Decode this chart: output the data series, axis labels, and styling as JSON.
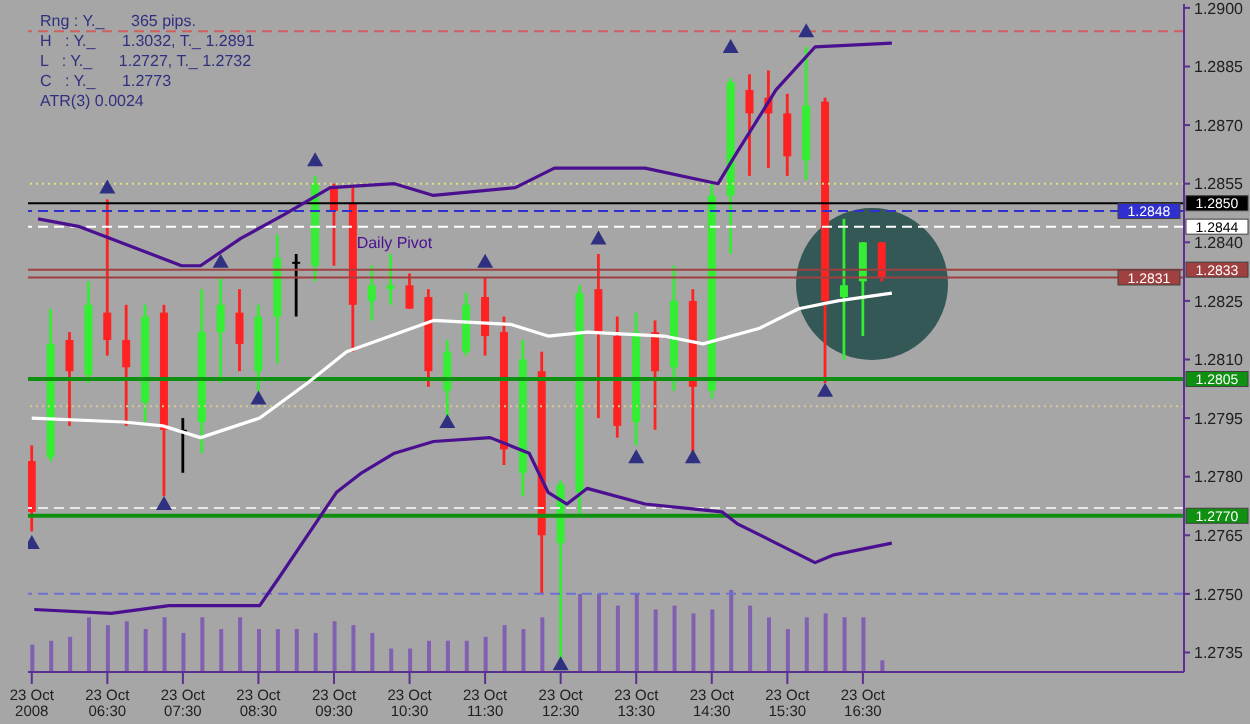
{
  "chart_data": {
    "type": "candlestick",
    "x": [
      "2008-10-23T05:30",
      "2008-10-23T05:45",
      "2008-10-23T06:00",
      "2008-10-23T06:15",
      "2008-10-23T06:30",
      "2008-10-23T06:45",
      "2008-10-23T07:00",
      "2008-10-23T07:15",
      "2008-10-23T07:30",
      "2008-10-23T07:45",
      "2008-10-23T08:00",
      "2008-10-23T08:15",
      "2008-10-23T08:30",
      "2008-10-23T08:45",
      "2008-10-23T09:00",
      "2008-10-23T09:15",
      "2008-10-23T09:30",
      "2008-10-23T09:45",
      "2008-10-23T10:00",
      "2008-10-23T10:15",
      "2008-10-23T10:30",
      "2008-10-23T10:45",
      "2008-10-23T11:00",
      "2008-10-23T11:15",
      "2008-10-23T11:30",
      "2008-10-23T11:45",
      "2008-10-23T12:00",
      "2008-10-23T12:15",
      "2008-10-23T12:30",
      "2008-10-23T12:45",
      "2008-10-23T13:00",
      "2008-10-23T13:15",
      "2008-10-23T13:30",
      "2008-10-23T13:45",
      "2008-10-23T14:00",
      "2008-10-23T14:15",
      "2008-10-23T14:30",
      "2008-10-23T14:45",
      "2008-10-23T15:00",
      "2008-10-23T15:15",
      "2008-10-23T15:30",
      "2008-10-23T15:45",
      "2008-10-23T16:00",
      "2008-10-23T16:15",
      "2008-10-23T16:30",
      "2008-10-23T16:45"
    ],
    "ohlc": [
      [
        1.2784,
        1.2788,
        1.2766,
        1.2771
      ],
      [
        1.2785,
        1.2823,
        1.2784,
        1.2814
      ],
      [
        1.2815,
        1.2817,
        1.2793,
        1.2807
      ],
      [
        1.2806,
        1.283,
        1.2804,
        1.2824
      ],
      [
        1.2822,
        1.2851,
        1.2811,
        1.2815
      ],
      [
        1.2815,
        1.2824,
        1.2793,
        1.2808
      ],
      [
        1.2799,
        1.2824,
        1.2794,
        1.2821
      ],
      [
        1.2822,
        1.2824,
        1.2775,
        1.2792
      ],
      [
        1.2792,
        1.2795,
        1.2781,
        1.2792
      ],
      [
        1.2794,
        1.2828,
        1.2786,
        1.2817
      ],
      [
        1.2817,
        1.2831,
        1.2804,
        1.2824
      ],
      [
        1.2822,
        1.2828,
        1.2807,
        1.2814
      ],
      [
        1.2807,
        1.2824,
        1.2802,
        1.2821
      ],
      [
        1.2821,
        1.2842,
        1.2809,
        1.2836
      ],
      [
        1.2835,
        1.2837,
        1.2821,
        1.2835
      ],
      [
        1.2834,
        1.2857,
        1.283,
        1.2855
      ],
      [
        1.2854,
        1.2855,
        1.2834,
        1.2848
      ],
      [
        1.285,
        1.2854,
        1.2812,
        1.2824
      ],
      [
        1.2825,
        1.2834,
        1.282,
        1.2829
      ],
      [
        1.2828,
        1.2837,
        1.2824,
        1.2829
      ],
      [
        1.2829,
        1.2832,
        1.2823,
        1.2823
      ],
      [
        1.2826,
        1.2828,
        1.2803,
        1.2807
      ],
      [
        1.2802,
        1.2815,
        1.2795,
        1.2812
      ],
      [
        1.2812,
        1.2827,
        1.2811,
        1.2824
      ],
      [
        1.2826,
        1.2831,
        1.2811,
        1.2816
      ],
      [
        1.2817,
        1.2821,
        1.2783,
        1.2787
      ],
      [
        1.2781,
        1.2815,
        1.2775,
        1.281
      ],
      [
        1.2807,
        1.2812,
        1.275,
        1.2765
      ],
      [
        1.2763,
        1.2779,
        1.2732,
        1.2778
      ],
      [
        1.2776,
        1.2829,
        1.277,
        1.2827
      ],
      [
        1.2828,
        1.2837,
        1.2795,
        1.2817
      ],
      [
        1.2816,
        1.2821,
        1.279,
        1.2793
      ],
      [
        1.2794,
        1.2822,
        1.2788,
        1.2817
      ],
      [
        1.2817,
        1.282,
        1.2792,
        1.2807
      ],
      [
        1.2808,
        1.2834,
        1.2802,
        1.2825
      ],
      [
        1.2825,
        1.2828,
        1.2786,
        1.2803
      ],
      [
        1.2802,
        1.2855,
        1.28,
        1.2852
      ],
      [
        1.2852,
        1.2882,
        1.2837,
        1.2881
      ],
      [
        1.2879,
        1.2883,
        1.2857,
        1.2873
      ],
      [
        1.2877,
        1.2884,
        1.2859,
        1.2873
      ],
      [
        1.2873,
        1.2878,
        1.2857,
        1.2862
      ],
      [
        1.2861,
        1.289,
        1.2856,
        1.2875
      ],
      [
        1.2876,
        1.2877,
        1.2804,
        1.2825
      ],
      [
        1.2826,
        1.2846,
        1.281,
        1.2829
      ],
      [
        1.283,
        1.284,
        1.2816,
        1.284
      ],
      [
        1.284,
        1.284,
        1.283,
        1.2831
      ]
    ],
    "colors": [
      "#ff2222",
      "#33ee33",
      "#ff2222",
      "#33ee33",
      "#ff2222",
      "#ff2222",
      "#33ee33",
      "#ff2222",
      "#000000",
      "#33ee33",
      "#33ee33",
      "#ff2222",
      "#33ee33",
      "#33ee33",
      "#000000",
      "#33ee33",
      "#ff2222",
      "#ff2222",
      "#33ee33",
      "#33ee33",
      "#ff2222",
      "#ff2222",
      "#33ee33",
      "#33ee33",
      "#ff2222",
      "#ff2222",
      "#33ee33",
      "#ff2222",
      "#33ee33",
      "#33ee33",
      "#ff2222",
      "#ff2222",
      "#33ee33",
      "#ff2222",
      "#33ee33",
      "#ff2222",
      "#33ee33",
      "#33ee33",
      "#ff2222",
      "#ff2222",
      "#ff2222",
      "#33ee33",
      "#ff2222",
      "#33ee33",
      "#33ee33",
      "#ff2222"
    ],
    "series": [
      {
        "type": "bar",
        "color": "#8060b0",
        "values": [
          1.2737,
          1.2738,
          1.2739,
          1.2744,
          1.2742,
          1.2743,
          1.2741,
          1.2744,
          1.274,
          1.2744,
          1.2741,
          1.2744,
          1.2741,
          1.2741,
          1.2741,
          1.274,
          1.2743,
          1.2742,
          1.274,
          1.2736,
          1.2736,
          1.2738,
          1.2738,
          1.2738,
          1.2739,
          1.2742,
          1.2741,
          1.2744,
          null,
          1.275,
          1.275,
          1.2747,
          1.275,
          1.2746,
          1.2747,
          1.2745,
          1.2746,
          1.2751,
          1.2747,
          1.2744,
          1.2741,
          1.2744,
          1.2745,
          1.2744,
          1.2744,
          1.2733
        ]
      },
      {
        "type": "line",
        "color": "#4a1090",
        "x": [
          "2008-10-23T05:35",
          "2008-10-23T06:08",
          "2008-10-23T07:29",
          "2008-10-23T07:44",
          "2008-10-23T08:16",
          "2008-10-23T08:50",
          "2008-10-23T09:27",
          "2008-10-23T10:18",
          "2008-10-23T10:49",
          "2008-10-23T11:54",
          "2008-10-23T12:25",
          "2008-10-23T13:37",
          "2008-10-23T14:35",
          "2008-10-23T14:50",
          "2008-10-23T15:21",
          "2008-10-23T15:52",
          "2008-10-23T16:53"
        ],
        "values": [
          1.2846,
          1.2844,
          1.2834,
          1.2834,
          1.2841,
          1.2847,
          1.2854,
          1.2855,
          1.2852,
          1.2854,
          1.2859,
          1.2859,
          1.2855,
          1.2863,
          1.2879,
          1.289,
          1.2891
        ]
      },
      {
        "type": "line",
        "color": "#4a1090",
        "x": [
          "2008-10-23T05:32",
          "2008-10-23T06:33",
          "2008-10-23T07:19",
          "2008-10-23T08:31",
          "2008-10-23T08:46",
          "2008-10-23T09:32",
          "2008-10-23T09:52",
          "2008-10-23T10:18",
          "2008-10-23T10:49",
          "2008-10-23T11:34",
          "2008-10-23T12:05",
          "2008-10-23T12:20",
          "2008-10-23T12:35",
          "2008-10-23T12:51",
          "2008-10-23T13:37",
          "2008-10-23T14:38",
          "2008-10-23T14:50",
          "2008-10-23T15:21",
          "2008-10-23T15:52",
          "2008-10-23T16:07",
          "2008-10-23T16:53"
        ],
        "values": [
          1.2746,
          1.2745,
          1.2747,
          1.2747,
          1.2754,
          1.2776,
          1.2781,
          1.2786,
          1.2789,
          1.279,
          1.2786,
          1.2776,
          1.2773,
          1.2777,
          1.2773,
          1.2771,
          1.2768,
          1.2763,
          1.2758,
          1.276,
          1.2763
        ]
      },
      {
        "type": "line",
        "color": "#ffffff",
        "x": [
          "2008-10-23T05:30",
          "2008-10-23T06:43",
          "2008-10-23T07:14",
          "2008-10-23T07:44",
          "2008-10-23T08:31",
          "2008-10-23T09:09",
          "2008-10-23T09:40",
          "2008-10-23T10:49",
          "2008-10-23T11:50",
          "2008-10-23T12:20",
          "2008-10-23T12:51",
          "2008-10-23T13:52",
          "2008-10-23T14:23",
          "2008-10-23T15:08",
          "2008-10-23T15:39",
          "2008-10-23T16:10",
          "2008-10-23T16:53"
        ],
        "values": [
          1.2795,
          1.2794,
          1.2793,
          1.279,
          1.2795,
          1.2804,
          1.2812,
          1.282,
          1.2819,
          1.2816,
          1.2817,
          1.2816,
          1.2814,
          1.2818,
          1.2823,
          1.2825,
          1.2827
        ]
      },
      {
        "type": "scatter",
        "marker": "triangle",
        "color": "#303080",
        "x": [
          "2008-10-23T06:30",
          "2008-10-23T08:00",
          "2008-10-23T09:15",
          "2008-10-23T11:30",
          "2008-10-23T13:00",
          "2008-10-23T14:45",
          "2008-10-23T15:45"
        ],
        "values": [
          1.2854,
          1.2835,
          1.2861,
          1.2835,
          1.2841,
          1.289,
          1.2894
        ]
      },
      {
        "type": "scatter",
        "marker": "triangle",
        "color": "#303080",
        "x": [
          "2008-10-23T05:30",
          "2008-10-23T07:15",
          "2008-10-23T08:30",
          "2008-10-23T11:00",
          "2008-10-23T12:30",
          "2008-10-23T13:30",
          "2008-10-23T14:15",
          "2008-10-23T16:00"
        ],
        "values": [
          1.2763,
          1.2773,
          1.28,
          1.2794,
          1.2732,
          1.2785,
          1.2785,
          1.2802
        ]
      }
    ],
    "xlim": [
      "2008-10-23T05:27",
      "2008-10-23T20:45"
    ],
    "xticks": [
      {
        "value": "2008-10-23T05:30",
        "label": "23 Oct 2008"
      },
      {
        "value": "2008-10-23T06:30",
        "label": "23 Oct 06:30"
      },
      {
        "value": "2008-10-23T07:30",
        "label": "23 Oct 07:30"
      },
      {
        "value": "2008-10-23T08:30",
        "label": "23 Oct 08:30"
      },
      {
        "value": "2008-10-23T09:30",
        "label": "23 Oct 09:30"
      },
      {
        "value": "2008-10-23T10:30",
        "label": "23 Oct 10:30"
      },
      {
        "value": "2008-10-23T11:30",
        "label": "23 Oct 11:30"
      },
      {
        "value": "2008-10-23T12:30",
        "label": "23 Oct 12:30"
      },
      {
        "value": "2008-10-23T13:30",
        "label": "23 Oct 13:30"
      },
      {
        "value": "2008-10-23T14:30",
        "label": "23 Oct 14:30"
      },
      {
        "value": "2008-10-23T15:30",
        "label": "23 Oct 15:30"
      },
      {
        "value": "2008-10-23T16:30",
        "label": "23 Oct 16:30"
      }
    ],
    "ylim": [
      1.273,
      1.2901
    ],
    "yticks": [
      1.2735,
      {
        "value": 1.275,
        "label": "1.2750"
      },
      1.2765,
      {
        "value": 1.278,
        "label": "1.2780"
      },
      1.2795,
      {
        "value": 1.281,
        "label": "1.2810"
      },
      1.2825,
      {
        "value": 1.284,
        "label": "1.2840"
      },
      1.2855,
      {
        "value": 1.287,
        "label": "1.2870"
      },
      1.2885,
      {
        "value": 1.29,
        "label": "1.2900"
      }
    ],
    "ref_lines": [
      {
        "axis": "y",
        "value": 1.2894,
        "color": "#d06060",
        "line_style": "dashed"
      },
      {
        "axis": "y",
        "value": 1.2855,
        "color": "#e0e080",
        "line_style": "dotted"
      },
      {
        "axis": "y",
        "value": 1.285,
        "color": "#000000",
        "line_style": "solid",
        "label": "1.2850"
      },
      {
        "axis": "y",
        "value": 1.2848,
        "color": "#3030d0",
        "line_style": "dashed",
        "label": "1.2848"
      },
      {
        "axis": "y",
        "value": 1.2844,
        "color": "#ffffff",
        "line_style": "dashed",
        "label": "1.2844"
      },
      {
        "axis": "y",
        "value": 1.2833,
        "color": "#a04040",
        "line_style": "solid",
        "label": "1.2833"
      },
      {
        "axis": "y",
        "value": 1.2831,
        "color": "#a04040",
        "line_style": "solid",
        "label": "1.2831"
      },
      {
        "axis": "y",
        "value": 1.2805,
        "color": "#109010",
        "line_style": "solid",
        "label": "1.2805"
      },
      {
        "axis": "y",
        "value": 1.2798,
        "color": "#d8c890",
        "line_style": "dotted"
      },
      {
        "axis": "y",
        "value": 1.2772,
        "color": "#e8e8e8",
        "line_style": "dashed"
      },
      {
        "axis": "y",
        "value": 1.277,
        "color": "#109010",
        "line_style": "solid",
        "label": "1.2770"
      },
      {
        "axis": "y",
        "value": 1.275,
        "color": "#7070d0",
        "line_style": "dashed"
      }
    ],
    "annotations": [
      "Rng : Y._      365 pips.",
      "H   : Y._      1.3032, T._ 1.2891",
      "L   : Y._      1.2727, T._ 1.2732",
      "C   : Y._      1.2773",
      "ATR(3) 0.0024",
      {
        "text": "Daily Pivot",
        "x": "2008-10-23T10:18",
        "y": 1.2844
      }
    ]
  }
}
